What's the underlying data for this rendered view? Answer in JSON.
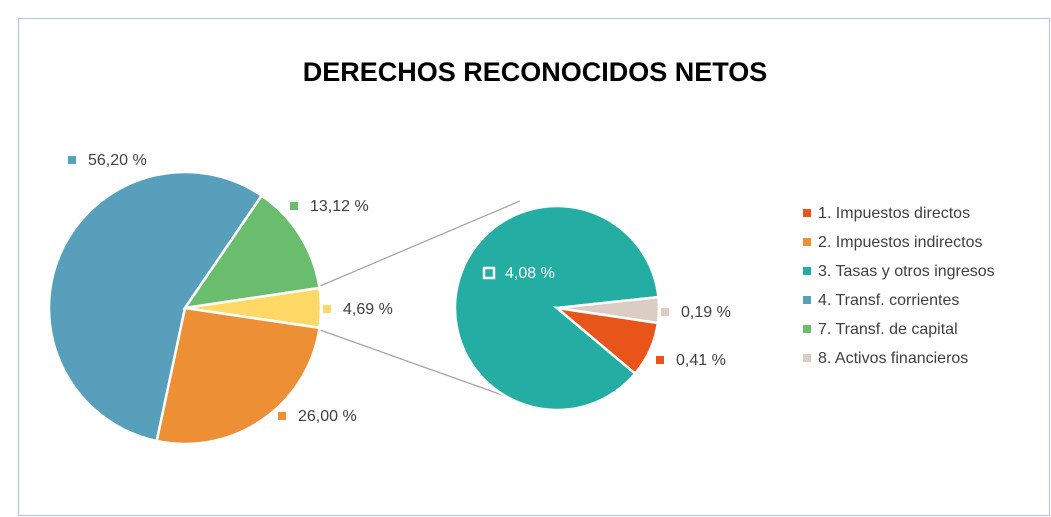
{
  "chart_data": [
    {
      "type": "pie",
      "title": "DERECHOS RECONOCIDOS NETOS",
      "values": [
        56.2,
        13.12,
        4.69,
        26.0
      ],
      "value_labels": [
        "56,20 %",
        "13,12 %",
        "4,69 %",
        "26,00 %"
      ],
      "colors": [
        "#579fba",
        "#6bbd6e",
        "#ffd966",
        "#ed8f35"
      ],
      "start_angle": -168
    },
    {
      "type": "pie",
      "values": [
        4.08,
        0.19,
        0.41
      ],
      "value_labels": [
        "4,08 %",
        "0,19 %",
        "0,41 %"
      ],
      "colors": [
        "#23ada3",
        "#dbcdc4",
        "#e8541a"
      ],
      "start_angle": -230
    }
  ],
  "legend": {
    "entries": [
      "1. Impuestos directos",
      "2. Impuestos indirectos",
      "3. Tasas y otros ingresos",
      "4. Transf. corrientes",
      "7. Transf. de capital",
      "8. Activos financieros"
    ],
    "colors": [
      "#e8541a",
      "#ed8f35",
      "#23ada3",
      "#579fba",
      "#6bbd6e",
      "#dbcdc4"
    ],
    "position": "right"
  }
}
